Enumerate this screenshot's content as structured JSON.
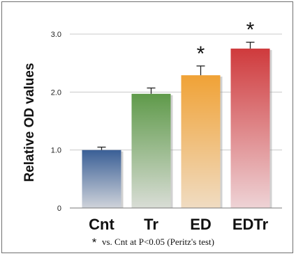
{
  "chart_data": {
    "type": "bar",
    "ylabel": "Relative OD values",
    "categories": [
      "Cnt",
      "Tr",
      "ED",
      "EDTr"
    ],
    "values": [
      1.0,
      1.97,
      2.29,
      2.75
    ],
    "errors": [
      0.05,
      0.1,
      0.16,
      0.11
    ],
    "significant": [
      false,
      false,
      true,
      true
    ],
    "significance_marker": "*",
    "ylim": [
      0,
      3.0
    ],
    "yticks": [
      {
        "value": 0,
        "label": "0"
      },
      {
        "value": 1.0,
        "label": "1.0"
      },
      {
        "value": 2.0,
        "label": "2.0"
      },
      {
        "value": 3.0,
        "label": "3.0"
      }
    ],
    "grid": true,
    "colors": {
      "Cnt": [
        "#3a5f96",
        "#cfd3da"
      ],
      "Tr": [
        "#5f9a4a",
        "#d9ddd6"
      ],
      "ED": [
        "#f0a236",
        "#f0dcc2"
      ],
      "EDTr": [
        "#cf3a3c",
        "#eed3d6"
      ]
    },
    "footnote": {
      "marker": "*",
      "text": "vs. Cnt at P<0.05 (Peritz's test)"
    }
  }
}
